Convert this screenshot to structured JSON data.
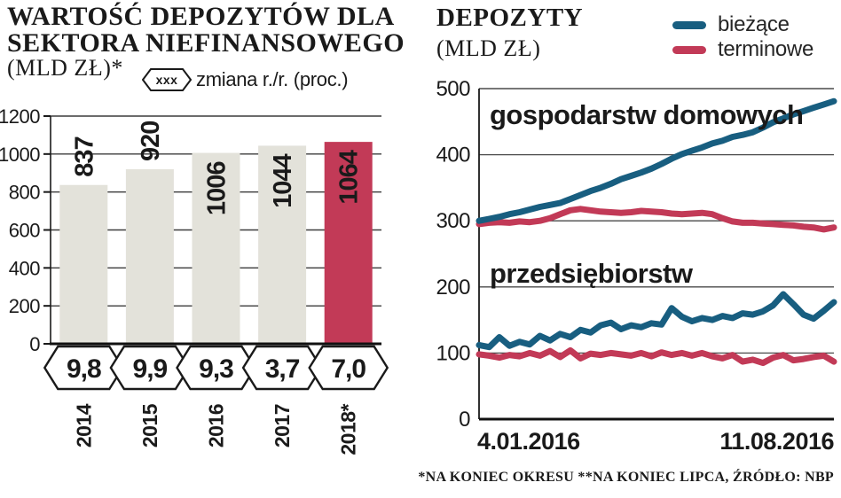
{
  "left_chart": {
    "title_line1": "WARTOŚĆ DEPOZYTÓW DLA",
    "title_line2": "SEKTORA NIEFINANSOWEGO",
    "unit_label": "(MLD ZŁ)*",
    "legend_badge_text": "xxx",
    "legend_text": "zmiana r./r. (proc.)"
  },
  "right_chart": {
    "title": "DEPOZYTY",
    "unit_label": "(MLD ZŁ)",
    "legend": [
      {
        "label": "bieżące",
        "color": "#185e80"
      },
      {
        "label": "terminowe",
        "color": "#c23a57"
      }
    ]
  },
  "footer": {
    "note": "*NA KONIEC OKRESU **NA KONIEC LIPCA, ŹRÓDŁO: NBP"
  },
  "colors": {
    "accent_blue": "#185e80",
    "accent_red": "#c23a57",
    "bar_gray": "#e3e2da",
    "text": "#1a1a1a",
    "grid": "#4a4a4a"
  },
  "chart_data": [
    {
      "type": "bar",
      "title": "WARTOŚĆ DEPOZYTÓW DLA SEKTORA NIEFINANSOWEGO (MLD ZŁ)*",
      "categories": [
        "2014",
        "2015",
        "2016",
        "2017",
        "2018*"
      ],
      "values": [
        837,
        920,
        1006,
        1044,
        1064
      ],
      "bar_colors": [
        "#e3e2da",
        "#e3e2da",
        "#e3e2da",
        "#e3e2da",
        "#c23a57"
      ],
      "label_colors": [
        "#1a1a1a",
        "#1a1a1a",
        "#1a1a1a",
        "#1a1a1a",
        "#ffffff"
      ],
      "label_inside": [
        false,
        false,
        true,
        true,
        true
      ],
      "change_yoy_percent": [
        "9,8",
        "9,9",
        "9,3",
        "3,7",
        "7,0"
      ],
      "change_legend": "zmiana r./r. (proc.)",
      "ylabel": "MLD ZŁ",
      "ylim": [
        0,
        1200
      ],
      "ytick_step": 200,
      "grid": true
    },
    {
      "type": "line",
      "title": "DEPOZYTY (MLD ZŁ)",
      "ylim": [
        0,
        500
      ],
      "ytick_step": 100,
      "grid": true,
      "x_start_label": "4.01.2016",
      "x_end_label": "11.08.2016",
      "annotations": [
        "gospodarstw domowych",
        "przedsiębiorstw"
      ],
      "legend_position": "top-right",
      "series": [
        {
          "group": "gospodarstw domowych",
          "type_label": "terminowe",
          "color": "#c23a57",
          "values": [
            295,
            297,
            298,
            297,
            299,
            298,
            300,
            304,
            310,
            316,
            318,
            316,
            314,
            313,
            312,
            313,
            315,
            314,
            313,
            311,
            310,
            311,
            312,
            310,
            304,
            299,
            297,
            297,
            296,
            295,
            294,
            293,
            291,
            290,
            287,
            290
          ]
        },
        {
          "group": "gospodarstw domowych",
          "type_label": "bieżące",
          "color": "#185e80",
          "values": [
            300,
            303,
            306,
            310,
            313,
            317,
            321,
            324,
            327,
            333,
            339,
            345,
            350,
            356,
            363,
            368,
            373,
            379,
            386,
            394,
            401,
            406,
            411,
            417,
            421,
            427,
            430,
            434,
            441,
            449,
            455,
            461,
            466,
            471,
            476,
            481
          ]
        },
        {
          "group": "przedsiębiorstw",
          "type_label": "terminowe",
          "color": "#c23a57",
          "values": [
            98,
            96,
            93,
            97,
            95,
            100,
            96,
            103,
            94,
            104,
            92,
            99,
            97,
            100,
            98,
            96,
            100,
            95,
            101,
            97,
            100,
            96,
            100,
            95,
            92,
            97,
            87,
            90,
            85,
            93,
            97,
            89,
            91,
            94,
            96,
            87
          ]
        },
        {
          "group": "przedsiębiorstw",
          "type_label": "bieżące",
          "color": "#185e80",
          "values": [
            112,
            109,
            124,
            111,
            117,
            113,
            126,
            119,
            129,
            124,
            135,
            131,
            142,
            146,
            136,
            142,
            139,
            145,
            143,
            168,
            155,
            148,
            153,
            150,
            156,
            153,
            160,
            158,
            163,
            172,
            189,
            174,
            158,
            152,
            164,
            177
          ]
        }
      ]
    }
  ]
}
